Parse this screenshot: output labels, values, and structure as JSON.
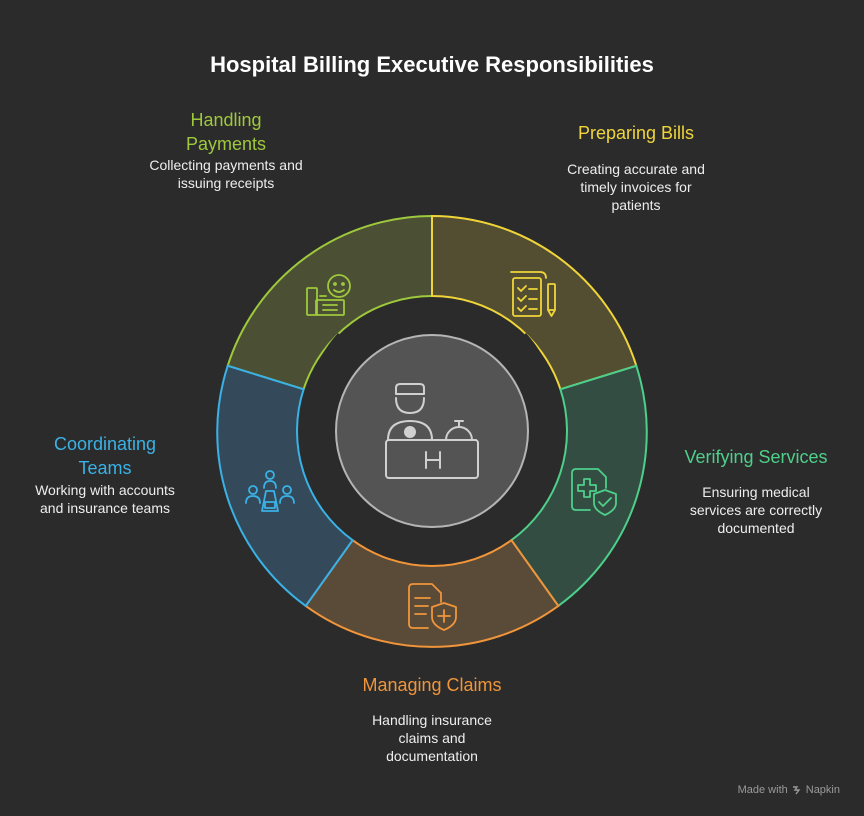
{
  "title": "Hospital Billing Executive Responsibilities",
  "sections": [
    {
      "id": "handling-payments",
      "label": "Handling Payments",
      "description": "Collecting payments and issuing receipts",
      "color": "#9fc93c",
      "icon": "cashier-icon"
    },
    {
      "id": "preparing-bills",
      "label": "Preparing Bills",
      "description": "Creating accurate and timely invoices for patients",
      "color": "#f0d53a",
      "icon": "checklist-icon"
    },
    {
      "id": "verifying-services",
      "label": "Verifying Services",
      "description": "Ensuring medical services are correctly documented",
      "color": "#4ecf8a",
      "icon": "medical-shield-icon"
    },
    {
      "id": "managing-claims",
      "label": "Managing Claims",
      "description": "Handling insurance claims and documentation",
      "color": "#f0953a",
      "icon": "claim-document-icon"
    },
    {
      "id": "coordinating-teams",
      "label": "Coordinating Teams",
      "description": "Working with accounts and insurance teams",
      "color": "#3ab2e6",
      "icon": "team-icon"
    }
  ],
  "center_icon": "hospital-reception-icon",
  "footer": {
    "text": "Made with",
    "brand": "Napkin"
  }
}
